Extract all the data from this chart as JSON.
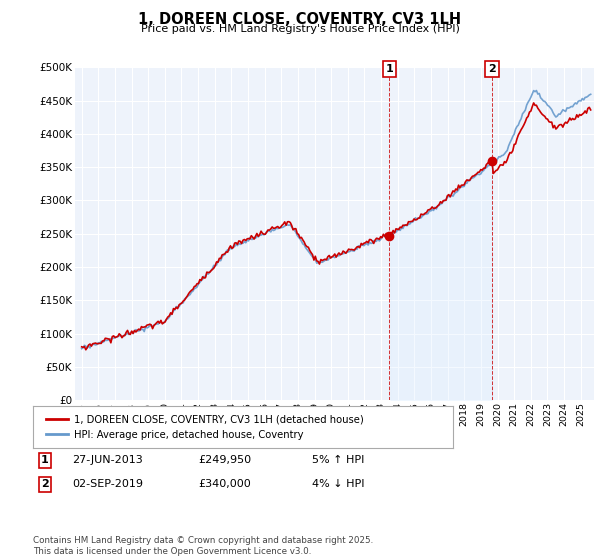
{
  "title": "1, DOREEN CLOSE, COVENTRY, CV3 1LH",
  "subtitle": "Price paid vs. HM Land Registry's House Price Index (HPI)",
  "ylim": [
    0,
    500000
  ],
  "yticks": [
    0,
    50000,
    100000,
    150000,
    200000,
    250000,
    300000,
    350000,
    400000,
    450000,
    500000
  ],
  "ytick_labels": [
    "£0",
    "£50K",
    "£100K",
    "£150K",
    "£200K",
    "£250K",
    "£300K",
    "£350K",
    "£400K",
    "£450K",
    "£500K"
  ],
  "xlim_start": 1994.6,
  "xlim_end": 2025.8,
  "line1_color": "#cc0000",
  "line2_color": "#6699cc",
  "line2_fill_color": "#d0e4f7",
  "shade_color": "#ddeeff",
  "background_color": "#ffffff",
  "plot_bg_color": "#eef3fb",
  "grid_color": "#ffffff",
  "sale1_year": 2013.49,
  "sale1_price": 249950,
  "sale2_year": 2019.67,
  "sale2_price": 340000,
  "legend_entry1": "1, DOREEN CLOSE, COVENTRY, CV3 1LH (detached house)",
  "legend_entry2": "HPI: Average price, detached house, Coventry",
  "footer": "Contains HM Land Registry data © Crown copyright and database right 2025.\nThis data is licensed under the Open Government Licence v3.0.",
  "table_row1": [
    "1",
    "27-JUN-2013",
    "£249,950",
    "5% ↑ HPI"
  ],
  "table_row2": [
    "2",
    "02-SEP-2019",
    "£340,000",
    "4% ↓ HPI"
  ],
  "hpi_seed": 10,
  "prop_seed": 20
}
